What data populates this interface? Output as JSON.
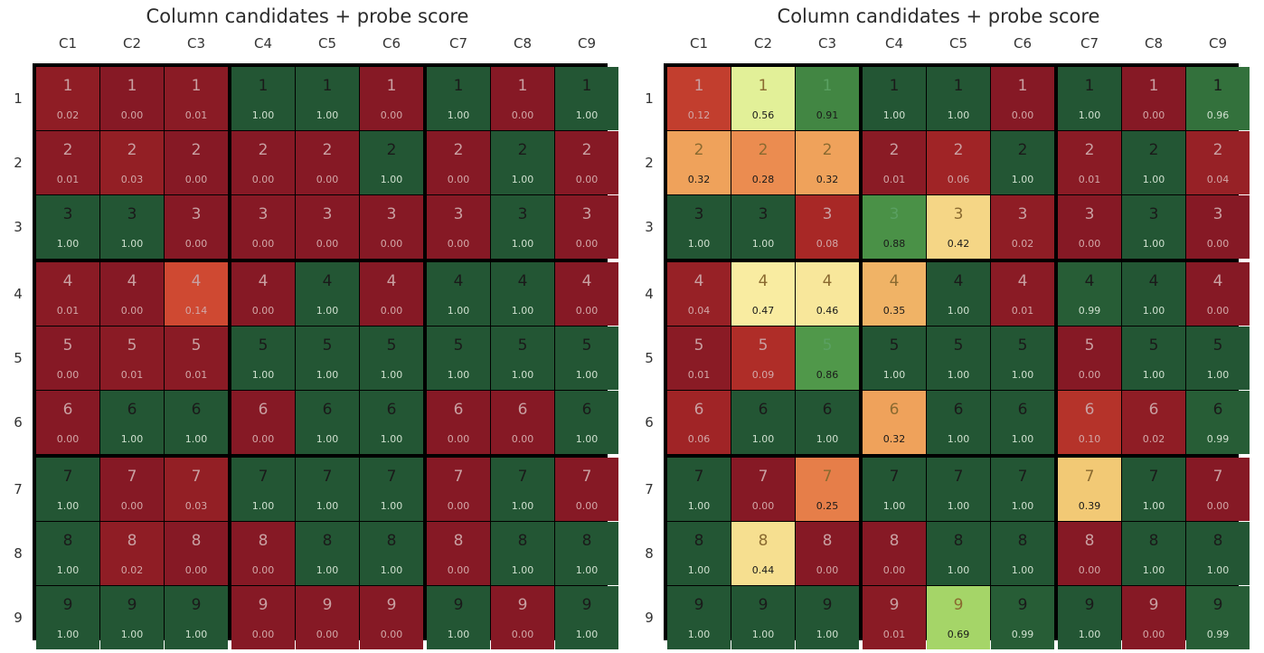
{
  "chart_data": [
    {
      "type": "heatmap",
      "title": "Column candidates + probe score",
      "columns": [
        "C1",
        "C2",
        "C3",
        "C4",
        "C5",
        "C6",
        "C7",
        "C8",
        "C9"
      ],
      "rows": [
        "1",
        "2",
        "3",
        "4",
        "5",
        "6",
        "7",
        "8",
        "9"
      ],
      "value_range": [
        0,
        1
      ],
      "colormap": "red-yellow-green",
      "scores": [
        [
          "0.02",
          "0.00",
          "0.01",
          "1.00",
          "1.00",
          "0.00",
          "1.00",
          "0.00",
          "1.00"
        ],
        [
          "0.01",
          "0.03",
          "0.00",
          "0.00",
          "0.00",
          "1.00",
          "0.00",
          "1.00",
          "0.00"
        ],
        [
          "1.00",
          "1.00",
          "0.00",
          "0.00",
          "0.00",
          "0.00",
          "0.00",
          "1.00",
          "0.00"
        ],
        [
          "0.01",
          "0.00",
          "0.14",
          "0.00",
          "1.00",
          "0.00",
          "1.00",
          "1.00",
          "0.00"
        ],
        [
          "0.00",
          "0.01",
          "0.01",
          "1.00",
          "1.00",
          "1.00",
          "1.00",
          "1.00",
          "1.00"
        ],
        [
          "0.00",
          "1.00",
          "1.00",
          "0.00",
          "1.00",
          "1.00",
          "0.00",
          "0.00",
          "1.00"
        ],
        [
          "1.00",
          "0.00",
          "0.03",
          "1.00",
          "1.00",
          "1.00",
          "0.00",
          "1.00",
          "0.00"
        ],
        [
          "1.00",
          "0.02",
          "0.00",
          "0.00",
          "1.00",
          "1.00",
          "0.00",
          "1.00",
          "1.00"
        ],
        [
          "1.00",
          "1.00",
          "1.00",
          "0.00",
          "0.00",
          "0.00",
          "1.00",
          "0.00",
          "1.00"
        ]
      ]
    },
    {
      "type": "heatmap",
      "title": "Column candidates + probe score",
      "columns": [
        "C1",
        "C2",
        "C3",
        "C4",
        "C5",
        "C6",
        "C7",
        "C8",
        "C9"
      ],
      "rows": [
        "1",
        "2",
        "3",
        "4",
        "5",
        "6",
        "7",
        "8",
        "9"
      ],
      "value_range": [
        0,
        1
      ],
      "colormap": "red-yellow-green",
      "scores": [
        [
          "0.12",
          "0.56",
          "0.91",
          "1.00",
          "1.00",
          "0.00",
          "1.00",
          "0.00",
          "0.96"
        ],
        [
          "0.32",
          "0.28",
          "0.32",
          "0.01",
          "0.06",
          "1.00",
          "0.01",
          "1.00",
          "0.04"
        ],
        [
          "1.00",
          "1.00",
          "0.08",
          "0.88",
          "0.42",
          "0.02",
          "0.00",
          "1.00",
          "0.00"
        ],
        [
          "0.04",
          "0.47",
          "0.46",
          "0.35",
          "1.00",
          "0.01",
          "0.99",
          "1.00",
          "0.00"
        ],
        [
          "0.01",
          "0.09",
          "0.86",
          "1.00",
          "1.00",
          "1.00",
          "0.00",
          "1.00",
          "1.00"
        ],
        [
          "0.06",
          "1.00",
          "1.00",
          "0.32",
          "1.00",
          "1.00",
          "0.10",
          "0.02",
          "0.99"
        ],
        [
          "1.00",
          "0.00",
          "0.25",
          "1.00",
          "1.00",
          "1.00",
          "0.39",
          "1.00",
          "0.00"
        ],
        [
          "1.00",
          "0.44",
          "0.00",
          "0.00",
          "1.00",
          "1.00",
          "0.00",
          "1.00",
          "1.00"
        ],
        [
          "1.00",
          "1.00",
          "1.00",
          "0.01",
          "0.69",
          "0.99",
          "1.00",
          "0.00",
          "0.99"
        ]
      ]
    }
  ]
}
